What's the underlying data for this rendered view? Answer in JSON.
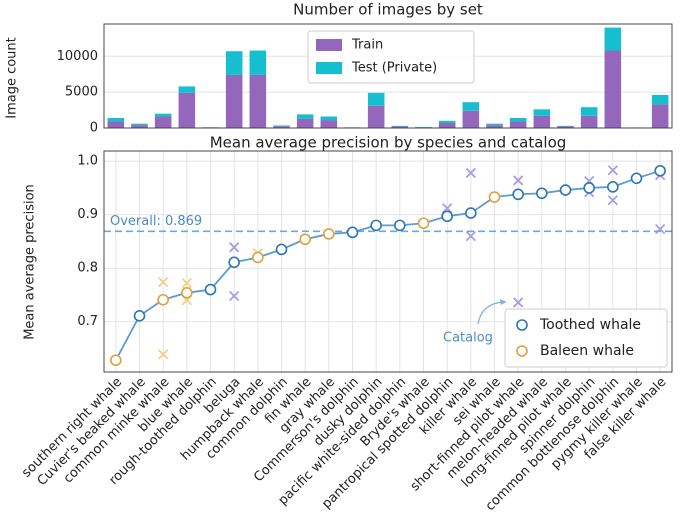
{
  "chart_data": [
    {
      "type": "bar",
      "stacked": true,
      "title": "Number of images by set",
      "y_label": "Image count",
      "ylim": [
        0,
        14500
      ],
      "yticks": [
        0,
        5000,
        10000
      ],
      "grid": true,
      "legend": "upper center",
      "series": [
        {
          "name": "Train",
          "color": "#9467bd",
          "values": [
            900,
            400,
            1600,
            4900,
            60,
            7400,
            7400,
            250,
            1300,
            1100,
            60,
            3100,
            200,
            100,
            700,
            2400,
            400,
            900,
            1700,
            200,
            1700,
            10800,
            50,
            3300
          ]
        },
        {
          "name": "Test (Private)",
          "color": "#17becf",
          "values": [
            500,
            200,
            400,
            900,
            40,
            3300,
            3400,
            100,
            600,
            500,
            30,
            1800,
            100,
            50,
            300,
            1200,
            200,
            500,
            900,
            100,
            1200,
            3200,
            26,
            1300
          ]
        }
      ]
    },
    {
      "type": "line",
      "title": "Mean average precision by species and catalog",
      "y_label": "Mean average precision",
      "ylim": [
        0.606,
        1.019
      ],
      "yticks": [
        0.7,
        0.8,
        0.9,
        {
          "value": 1,
          "label": "1.0"
        }
      ],
      "grid": true,
      "legend": "lower right",
      "line_color": "#5a9bd0",
      "categories": [
        "southern right whale",
        "Cuvier's beaked whale",
        "common minke whale",
        "blue whale",
        "rough-toothed dolphin",
        "beluga",
        "humpback whale",
        "common dolphin",
        "fin whale",
        "gray whale",
        "Commerson's dolphin",
        "dusky dolphin",
        "pacific white-sided dolphin",
        "Bryde's whale",
        "pantropical spotted dolphin",
        "killer whale",
        "sei whale",
        "short-finned pilot whale",
        "melon-headed whale",
        "long-finned pilot whale",
        "spinner dolphin",
        "common bottlenose dolphin",
        "pygmy killer whale",
        "false killer whale"
      ],
      "values": [
        0.628,
        0.711,
        0.741,
        0.754,
        0.76,
        0.811,
        0.82,
        0.835,
        0.854,
        0.864,
        0.867,
        0.88,
        0.88,
        0.884,
        0.897,
        0.903,
        0.933,
        0.938,
        0.94,
        0.946,
        0.95,
        0.952,
        0.968,
        0.982
      ],
      "groups": [
        "Baleen whale",
        "Toothed whale",
        "Baleen whale",
        "Baleen whale",
        "Toothed whale",
        "Toothed whale",
        "Baleen whale",
        "Toothed whale",
        "Baleen whale",
        "Baleen whale",
        "Toothed whale",
        "Toothed whale",
        "Toothed whale",
        "Baleen whale",
        "Toothed whale",
        "Toothed whale",
        "Baleen whale",
        "Toothed whale",
        "Toothed whale",
        "Toothed whale",
        "Toothed whale",
        "Toothed whale",
        "Toothed whale",
        "Toothed whale"
      ],
      "legend_entries": [
        {
          "name": "Toothed whale",
          "color": "#2b77b3",
          "catalog_color": "#a99ee6"
        },
        {
          "name": "Baleen whale",
          "color": "#e0a03a",
          "catalog_color": "#f4cf8a"
        }
      ],
      "overall": {
        "value": 0.869,
        "label": "Overall: 0.869"
      },
      "catalog_annotation": "Catalog",
      "catalog": [
        {
          "category": "common minke whale",
          "values": [
            0.774,
            0.639
          ]
        },
        {
          "category": "blue whale",
          "values": [
            0.772,
            0.74
          ]
        },
        {
          "category": "beluga",
          "values": [
            0.839,
            0.748
          ]
        },
        {
          "category": "humpback whale",
          "values": [
            0.828
          ]
        },
        {
          "category": "pantropical spotted dolphin",
          "values": [
            0.912
          ]
        },
        {
          "category": "killer whale",
          "values": [
            0.978,
            0.86
          ]
        },
        {
          "category": "short-finned pilot whale",
          "values": [
            0.964,
            0.736
          ]
        },
        {
          "category": "spinner dolphin",
          "values": [
            0.963,
            0.942
          ]
        },
        {
          "category": "common bottlenose dolphin",
          "values": [
            0.983,
            0.927
          ]
        },
        {
          "category": "false killer whale",
          "values": [
            0.974,
            0.873
          ]
        }
      ]
    }
  ]
}
